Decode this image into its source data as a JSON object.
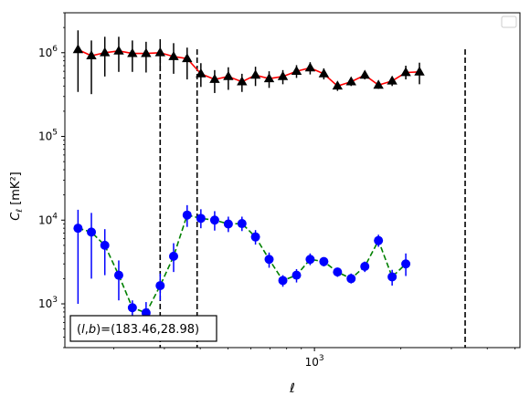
{
  "chart_data": {
    "type": "scatter",
    "xlabel": "ℓ",
    "ylabel": "C_ℓ [mK²]",
    "x_scale": "log",
    "y_scale": "log",
    "xlim": [
      135,
      5200
    ],
    "ylim": [
      300,
      3000000
    ],
    "x_tick_labels": [
      {
        "value": 1000,
        "label": "10^3"
      }
    ],
    "y_tick_labels": [
      {
        "value": 1000,
        "label": "10^3"
      },
      {
        "value": 10000,
        "label": "10^4"
      },
      {
        "value": 100000,
        "label": "10^5"
      },
      {
        "value": 1000000,
        "label": "10^6"
      }
    ],
    "legend": {
      "placement": "upper right",
      "entries": []
    },
    "annotation": "(l,b)=(183.46,28.98)",
    "vlines": [
      290,
      390,
      3350
    ],
    "series": [
      {
        "marker": "triangle",
        "marker_color": "#000000",
        "line_color": "#ff0000",
        "line_style": "solid",
        "points": [
          {
            "x": 150,
            "y": 1090000,
            "lo": 340000,
            "hi": 1850000
          },
          {
            "x": 167,
            "y": 920000,
            "lo": 320000,
            "hi": 1400000
          },
          {
            "x": 186,
            "y": 1000000,
            "lo": 520000,
            "hi": 1550000
          },
          {
            "x": 208,
            "y": 1050000,
            "lo": 590000,
            "hi": 1550000
          },
          {
            "x": 232,
            "y": 980000,
            "lo": 590000,
            "hi": 1400000
          },
          {
            "x": 259,
            "y": 980000,
            "lo": 580000,
            "hi": 1350000
          },
          {
            "x": 290,
            "y": 1000000,
            "lo": 610000,
            "hi": 1450000
          },
          {
            "x": 323,
            "y": 900000,
            "lo": 560000,
            "hi": 1300000
          },
          {
            "x": 360,
            "y": 850000,
            "lo": 480000,
            "hi": 1150000
          },
          {
            "x": 402,
            "y": 560000,
            "lo": 390000,
            "hi": 750000
          },
          {
            "x": 449,
            "y": 480000,
            "lo": 330000,
            "hi": 620000
          },
          {
            "x": 501,
            "y": 520000,
            "lo": 360000,
            "hi": 670000
          },
          {
            "x": 559,
            "y": 450000,
            "lo": 340000,
            "hi": 560000
          },
          {
            "x": 623,
            "y": 540000,
            "lo": 400000,
            "hi": 680000
          },
          {
            "x": 695,
            "y": 490000,
            "lo": 380000,
            "hi": 600000
          },
          {
            "x": 776,
            "y": 520000,
            "lo": 420000,
            "hi": 620000
          },
          {
            "x": 866,
            "y": 600000,
            "lo": 500000,
            "hi": 710000
          },
          {
            "x": 966,
            "y": 660000,
            "lo": 550000,
            "hi": 770000
          },
          {
            "x": 1078,
            "y": 560000,
            "lo": 480000,
            "hi": 650000
          },
          {
            "x": 1203,
            "y": 400000,
            "lo": 350000,
            "hi": 450000
          },
          {
            "x": 1342,
            "y": 450000,
            "lo": 400000,
            "hi": 510000
          },
          {
            "x": 1498,
            "y": 540000,
            "lo": 480000,
            "hi": 600000
          },
          {
            "x": 1671,
            "y": 410000,
            "lo": 370000,
            "hi": 450000
          },
          {
            "x": 1865,
            "y": 460000,
            "lo": 400000,
            "hi": 520000
          },
          {
            "x": 2081,
            "y": 580000,
            "lo": 480000,
            "hi": 700000
          },
          {
            "x": 2322,
            "y": 590000,
            "lo": 420000,
            "hi": 760000
          }
        ]
      },
      {
        "marker": "circle",
        "marker_color": "#0000ff",
        "line_color": "#008000",
        "line_style": "dashed",
        "points": [
          {
            "x": 150,
            "y": 8000,
            "lo": 1000,
            "hi": 13300
          },
          {
            "x": 167,
            "y": 7200,
            "lo": 2000,
            "hi": 12200
          },
          {
            "x": 186,
            "y": 5000,
            "lo": 2200,
            "hi": 7800
          },
          {
            "x": 208,
            "y": 2200,
            "lo": 1100,
            "hi": 3300
          },
          {
            "x": 232,
            "y": 900,
            "lo": 700,
            "hi": 1100
          },
          {
            "x": 259,
            "y": 780,
            "lo": 530,
            "hi": 1050
          },
          {
            "x": 290,
            "y": 1650,
            "lo": 1100,
            "hi": 2300
          },
          {
            "x": 323,
            "y": 3700,
            "lo": 2400,
            "hi": 5300
          },
          {
            "x": 360,
            "y": 11500,
            "lo": 8300,
            "hi": 15100
          },
          {
            "x": 402,
            "y": 10500,
            "lo": 8000,
            "hi": 13500
          },
          {
            "x": 449,
            "y": 10000,
            "lo": 7500,
            "hi": 12800
          },
          {
            "x": 501,
            "y": 9000,
            "lo": 7200,
            "hi": 11000
          },
          {
            "x": 559,
            "y": 9100,
            "lo": 7400,
            "hi": 11000
          },
          {
            "x": 623,
            "y": 6300,
            "lo": 5100,
            "hi": 7600
          },
          {
            "x": 695,
            "y": 3400,
            "lo": 2700,
            "hi": 4100
          },
          {
            "x": 776,
            "y": 1900,
            "lo": 1600,
            "hi": 2200
          },
          {
            "x": 866,
            "y": 2200,
            "lo": 1800,
            "hi": 2600
          },
          {
            "x": 966,
            "y": 3400,
            "lo": 2900,
            "hi": 4000
          },
          {
            "x": 1078,
            "y": 3200,
            "lo": 2800,
            "hi": 3600
          },
          {
            "x": 1203,
            "y": 2400,
            "lo": 2100,
            "hi": 2700
          },
          {
            "x": 1342,
            "y": 2000,
            "lo": 1750,
            "hi": 2300
          },
          {
            "x": 1498,
            "y": 2800,
            "lo": 2400,
            "hi": 3200
          },
          {
            "x": 1671,
            "y": 5700,
            "lo": 4800,
            "hi": 6700
          },
          {
            "x": 1865,
            "y": 2100,
            "lo": 1650,
            "hi": 2550
          },
          {
            "x": 2081,
            "y": 3000,
            "lo": 2150,
            "hi": 4000
          }
        ]
      }
    ]
  }
}
